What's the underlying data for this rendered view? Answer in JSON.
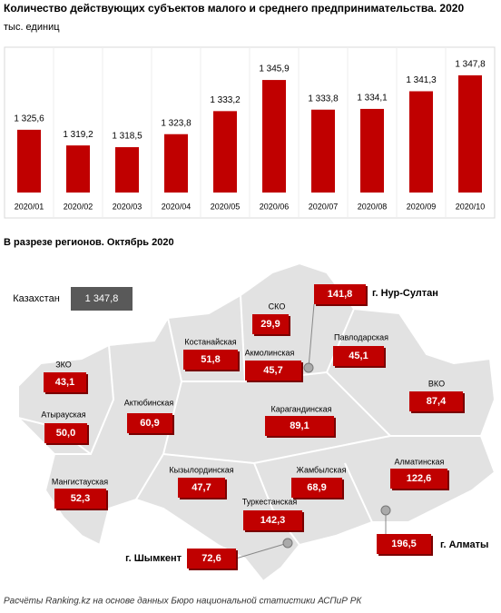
{
  "chart_data": {
    "type": "bar",
    "title": "Количество действующих субъектов малого и среднего предпринимательства. 2020",
    "subtitle": "тыс. единиц",
    "categories": [
      "2020/01",
      "2020/02",
      "2020/03",
      "2020/04",
      "2020/05",
      "2020/06",
      "2020/07",
      "2020/08",
      "2020/09",
      "2020/10"
    ],
    "values": [
      1325.6,
      1319.2,
      1318.5,
      1323.8,
      1333.2,
      1345.9,
      1333.8,
      1334.1,
      1341.3,
      1347.8
    ],
    "value_labels": [
      "1 325,6",
      "1 319,2",
      "1 318,5",
      "1 323,8",
      "1 333,2",
      "1 345,9",
      "1 333,8",
      "1 334,1",
      "1 341,3",
      "1 347,8"
    ],
    "color": "#c00000",
    "ylim": [
      1300,
      1350
    ]
  },
  "map": {
    "title": "В разрезе регионов. Октябрь 2020",
    "total": {
      "name": "Казахстан",
      "value": "1 347,8"
    },
    "regions": [
      {
        "name": "СКО",
        "value": "29,9"
      },
      {
        "name": "г. Нур-Султан",
        "value": "141,8"
      },
      {
        "name": "Костанайская",
        "value": "51,8"
      },
      {
        "name": "Акмолинская",
        "value": "45,7"
      },
      {
        "name": "Павлодарская",
        "value": "45,1"
      },
      {
        "name": "ЗКО",
        "value": "43,1"
      },
      {
        "name": "ВКО",
        "value": "87,4"
      },
      {
        "name": "Актюбинская",
        "value": "60,9"
      },
      {
        "name": "Карагандинская",
        "value": "89,1"
      },
      {
        "name": "Атырауская",
        "value": "50,0"
      },
      {
        "name": "Алматинская",
        "value": "122,6"
      },
      {
        "name": "Кызылординская",
        "value": "47,7"
      },
      {
        "name": "Жамбылская",
        "value": "68,9"
      },
      {
        "name": "Мангистауская",
        "value": "52,3"
      },
      {
        "name": "Туркестанская",
        "value": "142,3"
      },
      {
        "name": "г. Алматы",
        "value": "196,5"
      },
      {
        "name": "г. Шымкент",
        "value": "72,6"
      }
    ]
  },
  "footer": "Расчёты Ranking.kz на основе данных Бюро национальной статистики АСПиР РК"
}
